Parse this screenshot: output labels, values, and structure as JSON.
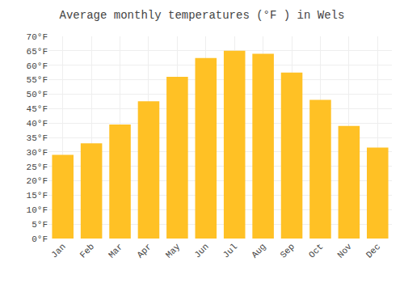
{
  "chart_data": {
    "type": "bar",
    "title": "Average monthly temperatures (°F ) in Wels",
    "categories": [
      "Jan",
      "Feb",
      "Mar",
      "Apr",
      "May",
      "Jun",
      "Jul",
      "Aug",
      "Sep",
      "Oct",
      "Nov",
      "Dec"
    ],
    "values": [
      29,
      33,
      39.5,
      47.5,
      56,
      62.5,
      65,
      64,
      57.5,
      48,
      39,
      31.5
    ],
    "color": "#FFC125",
    "ylim": [
      0,
      70
    ],
    "yticks": [
      {
        "value": 0,
        "label": "0°F"
      },
      {
        "value": 5,
        "label": "5°F"
      },
      {
        "value": 10,
        "label": "10°F"
      },
      {
        "value": 15,
        "label": "15°F"
      },
      {
        "value": 20,
        "label": "20°F"
      },
      {
        "value": 25,
        "label": "25°F"
      },
      {
        "value": 30,
        "label": "30°F"
      },
      {
        "value": 35,
        "label": "35°F"
      },
      {
        "value": 40,
        "label": "40°F"
      },
      {
        "value": 45,
        "label": "45°F"
      },
      {
        "value": 50,
        "label": "50°F"
      },
      {
        "value": 55,
        "label": "55°F"
      },
      {
        "value": 60,
        "label": "60°F"
      },
      {
        "value": 65,
        "label": "65°F"
      },
      {
        "value": 70,
        "label": "70°F"
      }
    ],
    "grid": true
  }
}
